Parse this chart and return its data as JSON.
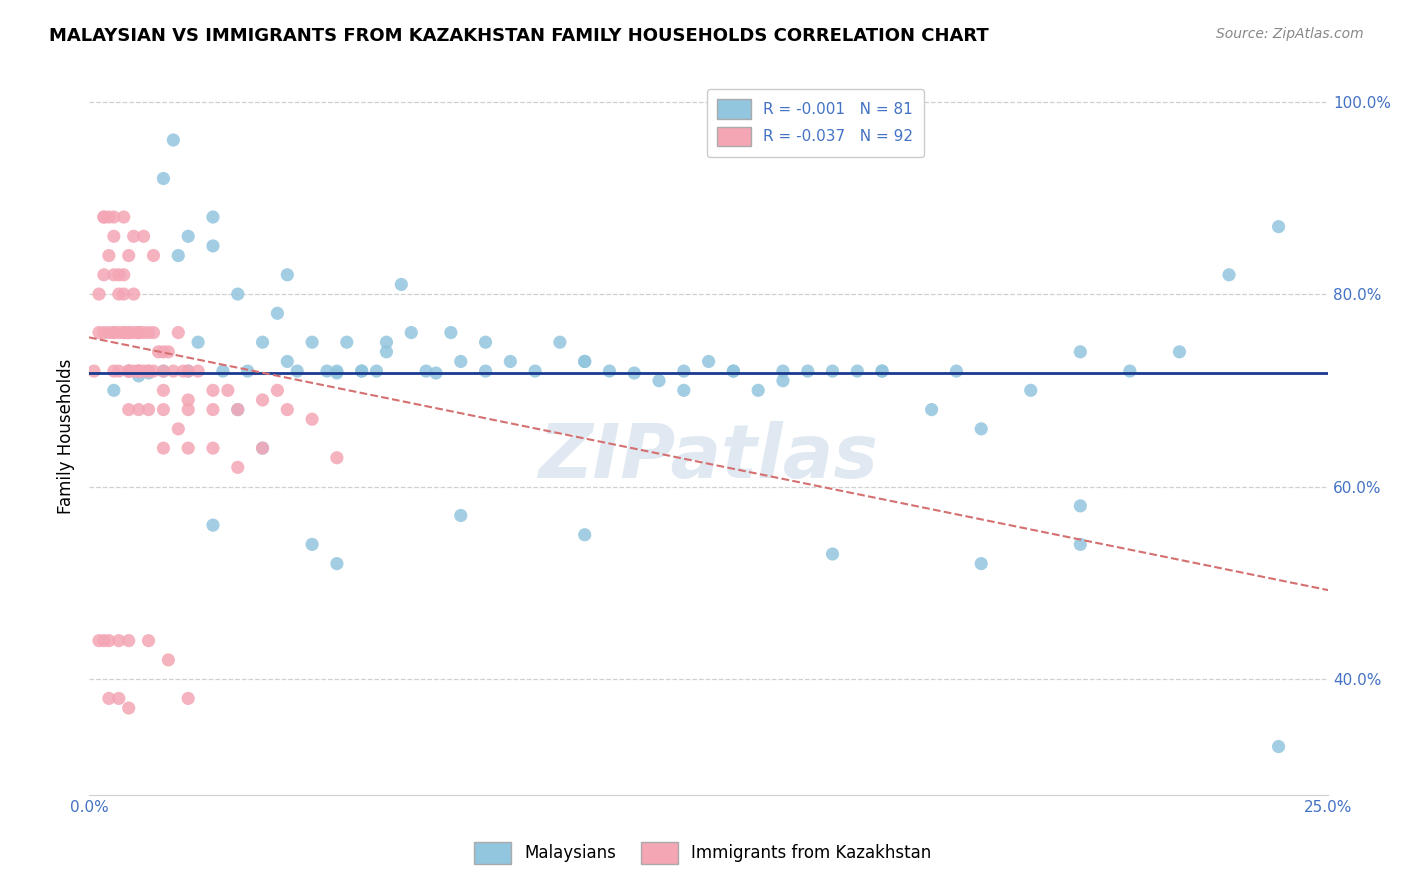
{
  "title": "MALAYSIAN VS IMMIGRANTS FROM KAZAKHSTAN FAMILY HOUSEHOLDS CORRELATION CHART",
  "source": "Source: ZipAtlas.com",
  "ylabel": "Family Households",
  "xmin": 0.0,
  "xmax": 0.25,
  "ymin": 0.28,
  "ymax": 1.025,
  "ytick_positions": [
    0.4,
    0.6,
    0.8,
    1.0
  ],
  "ytick_labels": [
    "40.0%",
    "60.0%",
    "80.0%",
    "100.0%"
  ],
  "xtick_positions": [
    0.0,
    0.05,
    0.1,
    0.15,
    0.2,
    0.25
  ],
  "xtick_labels": [
    "0.0%",
    "",
    "",
    "",
    "",
    "25.0%"
  ],
  "blue_color": "#92c5de",
  "pink_color": "#f4a6b5",
  "trend_blue_color": "#1a3a8f",
  "trend_pink_color": "#d47070",
  "axis_color": "#4472c4",
  "grid_color": "#d0d0d0",
  "watermark": "ZIPatlas",
  "legend_label_blue": "R = -0.001   N = 81",
  "legend_label_pink": "R = -0.037   N = 92",
  "bottom_legend_blue": "Malaysians",
  "bottom_legend_pink": "Immigrants from Kazakhstan",
  "blue_trend_y_intercept": 0.718,
  "blue_trend_slope": 0.0,
  "pink_trend_y_intercept": 0.755,
  "pink_trend_slope": -1.05,
  "blue_x": [
    0.005,
    0.008,
    0.01,
    0.012,
    0.015,
    0.017,
    0.018,
    0.02,
    0.022,
    0.025,
    0.027,
    0.03,
    0.032,
    0.035,
    0.038,
    0.04,
    0.042,
    0.045,
    0.048,
    0.05,
    0.052,
    0.055,
    0.058,
    0.06,
    0.063,
    0.065,
    0.068,
    0.07,
    0.073,
    0.075,
    0.08,
    0.085,
    0.09,
    0.095,
    0.1,
    0.105,
    0.11,
    0.115,
    0.12,
    0.125,
    0.13,
    0.135,
    0.14,
    0.145,
    0.15,
    0.155,
    0.16,
    0.17,
    0.175,
    0.18,
    0.19,
    0.2,
    0.21,
    0.22,
    0.23,
    0.24,
    0.06,
    0.08,
    0.1,
    0.12,
    0.14,
    0.16,
    0.025,
    0.03,
    0.035,
    0.04,
    0.045,
    0.05,
    0.055,
    0.015,
    0.02,
    0.025,
    0.05,
    0.075,
    0.1,
    0.15,
    0.2,
    0.13,
    0.18,
    0.24,
    0.2
  ],
  "blue_y": [
    0.7,
    0.72,
    0.715,
    0.718,
    0.72,
    0.96,
    0.84,
    0.72,
    0.75,
    0.85,
    0.72,
    0.8,
    0.72,
    0.75,
    0.78,
    0.82,
    0.72,
    0.75,
    0.72,
    0.718,
    0.75,
    0.72,
    0.72,
    0.75,
    0.81,
    0.76,
    0.72,
    0.718,
    0.76,
    0.73,
    0.75,
    0.73,
    0.72,
    0.75,
    0.73,
    0.72,
    0.718,
    0.71,
    0.72,
    0.73,
    0.72,
    0.7,
    0.71,
    0.72,
    0.72,
    0.72,
    0.72,
    0.68,
    0.72,
    0.66,
    0.7,
    0.74,
    0.72,
    0.74,
    0.82,
    0.87,
    0.74,
    0.72,
    0.73,
    0.7,
    0.72,
    0.72,
    0.56,
    0.68,
    0.64,
    0.73,
    0.54,
    0.52,
    0.72,
    0.92,
    0.86,
    0.88,
    0.72,
    0.57,
    0.55,
    0.53,
    0.58,
    0.72,
    0.52,
    0.33,
    0.54
  ],
  "pink_x": [
    0.001,
    0.002,
    0.002,
    0.003,
    0.003,
    0.003,
    0.004,
    0.004,
    0.004,
    0.005,
    0.005,
    0.005,
    0.005,
    0.006,
    0.006,
    0.006,
    0.007,
    0.007,
    0.007,
    0.007,
    0.008,
    0.008,
    0.008,
    0.008,
    0.009,
    0.009,
    0.009,
    0.01,
    0.01,
    0.01,
    0.01,
    0.011,
    0.011,
    0.012,
    0.012,
    0.013,
    0.013,
    0.014,
    0.015,
    0.015,
    0.016,
    0.017,
    0.018,
    0.019,
    0.02,
    0.022,
    0.025,
    0.028,
    0.03,
    0.035,
    0.038,
    0.04,
    0.045,
    0.008,
    0.01,
    0.012,
    0.015,
    0.02,
    0.025,
    0.01,
    0.015,
    0.02,
    0.005,
    0.008,
    0.012,
    0.018,
    0.025,
    0.035,
    0.05,
    0.006,
    0.008,
    0.01,
    0.015,
    0.02,
    0.03,
    0.003,
    0.005,
    0.007,
    0.009,
    0.011,
    0.013,
    0.002,
    0.003,
    0.004,
    0.006,
    0.008,
    0.012,
    0.016,
    0.02,
    0.004,
    0.006,
    0.008
  ],
  "pink_y": [
    0.72,
    0.76,
    0.8,
    0.82,
    0.76,
    0.88,
    0.84,
    0.88,
    0.76,
    0.76,
    0.82,
    0.86,
    0.76,
    0.76,
    0.8,
    0.82,
    0.76,
    0.8,
    0.76,
    0.82,
    0.72,
    0.76,
    0.84,
    0.76,
    0.72,
    0.76,
    0.8,
    0.76,
    0.72,
    0.76,
    0.76,
    0.76,
    0.72,
    0.76,
    0.72,
    0.76,
    0.72,
    0.74,
    0.74,
    0.72,
    0.74,
    0.72,
    0.76,
    0.72,
    0.72,
    0.72,
    0.7,
    0.7,
    0.68,
    0.69,
    0.7,
    0.68,
    0.67,
    0.72,
    0.72,
    0.72,
    0.7,
    0.69,
    0.68,
    0.72,
    0.68,
    0.68,
    0.72,
    0.72,
    0.68,
    0.66,
    0.64,
    0.64,
    0.63,
    0.72,
    0.68,
    0.68,
    0.64,
    0.64,
    0.62,
    0.88,
    0.88,
    0.88,
    0.86,
    0.86,
    0.84,
    0.44,
    0.44,
    0.44,
    0.44,
    0.44,
    0.44,
    0.42,
    0.38,
    0.38,
    0.38,
    0.37
  ]
}
